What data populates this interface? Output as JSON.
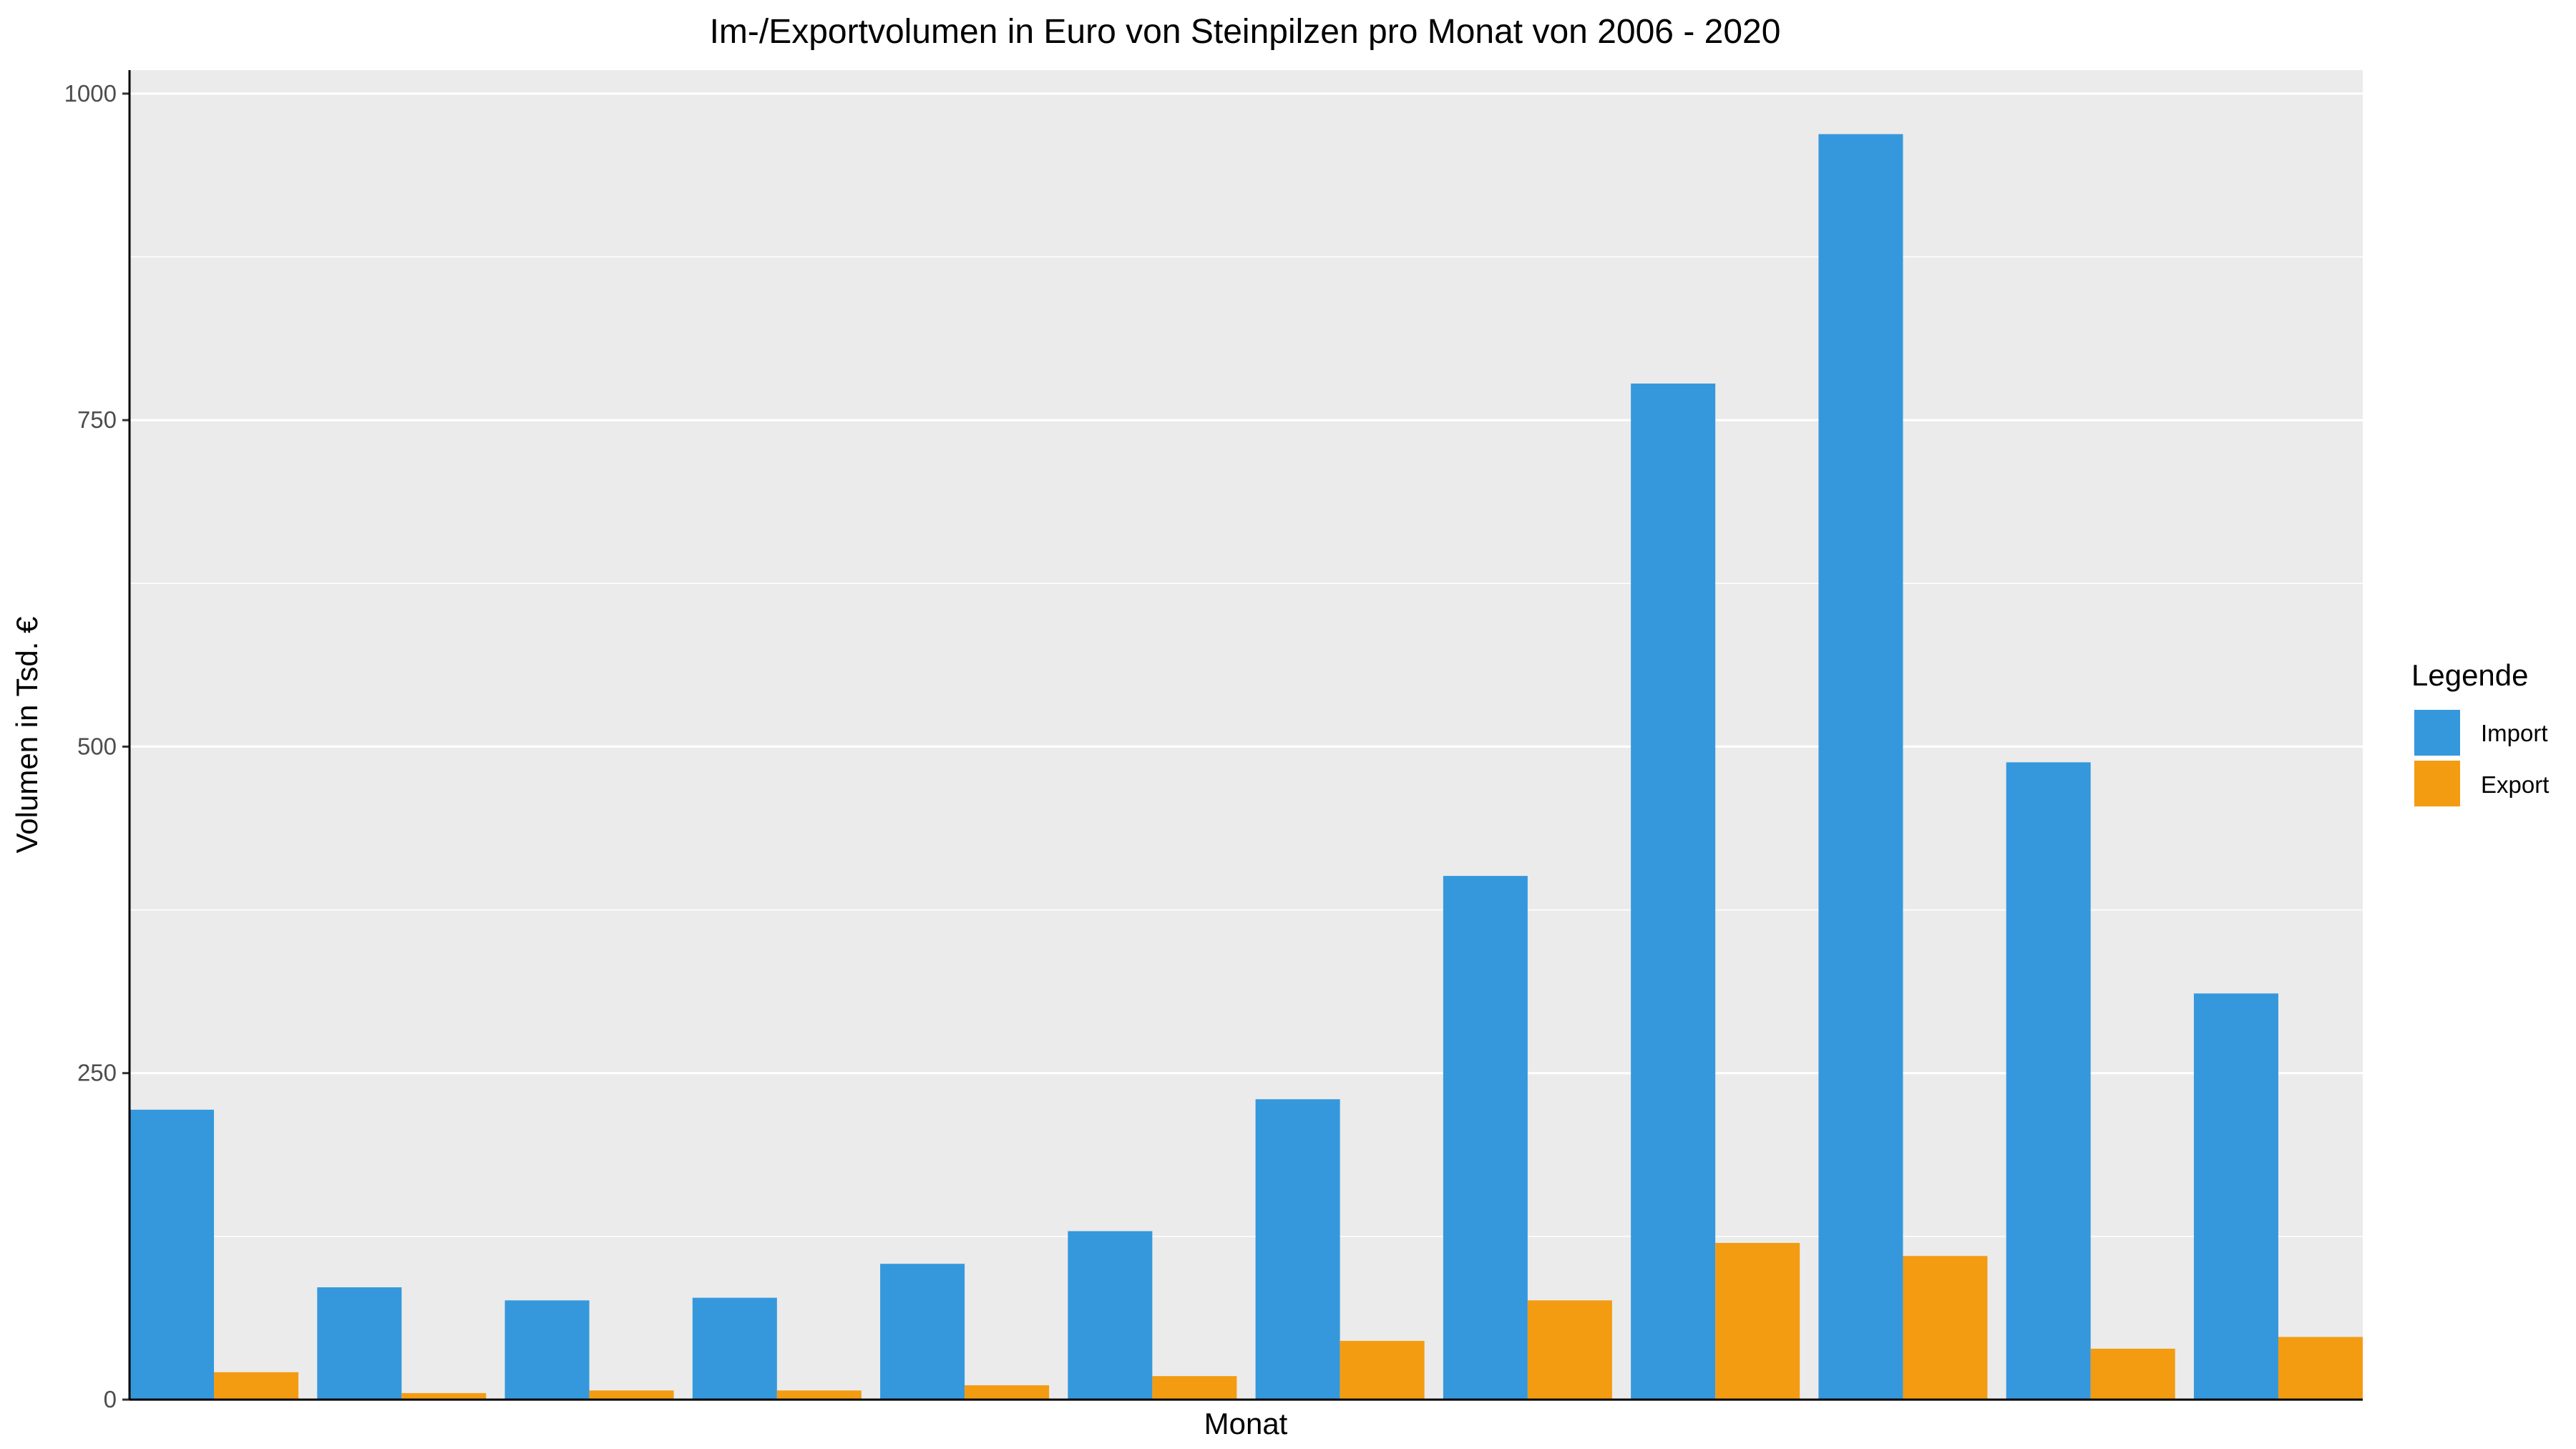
{
  "chart_data": {
    "type": "bar",
    "title": "Im-/Exportvolumen in Euro von Steinpilzen pro Monat von 2006 - 2020",
    "xlabel": "Monat",
    "ylabel": "Volumen in Tsd. €",
    "ylim": [
      0,
      1018
    ],
    "yticks": [
      0,
      250,
      500,
      750,
      1000
    ],
    "grid": true,
    "legend_position": "right",
    "legend_title": "Legende",
    "colors": {
      "Import": "#3598dc",
      "Export": "#f39c12",
      "panel": "#ebebeb",
      "grid": "#ffffff"
    },
    "categories": [
      "",
      "",
      "",
      "",
      "",
      "",
      "",
      "",
      "",
      "",
      "",
      ""
    ],
    "series": [
      {
        "name": "Import",
        "values": [
          222,
          86,
          76,
          78,
          104,
          129,
          230,
          401,
          778,
          969,
          488,
          311
        ]
      },
      {
        "name": "Export",
        "values": [
          21,
          5,
          7,
          7,
          11,
          18,
          45,
          76,
          120,
          110,
          39,
          48
        ]
      }
    ]
  }
}
